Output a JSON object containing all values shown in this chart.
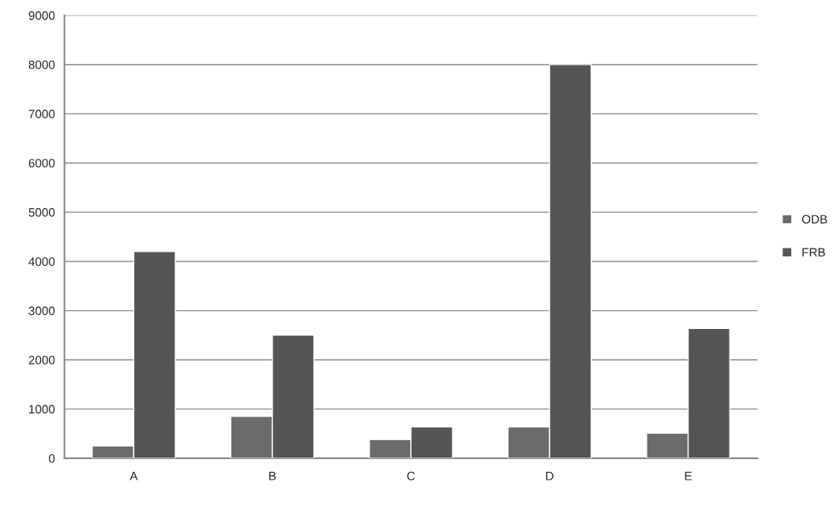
{
  "chart_data": {
    "type": "bar",
    "categories": [
      "A",
      "B",
      "C",
      "D",
      "E"
    ],
    "series": [
      {
        "name": "ODB",
        "color": "#6b6b6b",
        "values": [
          250,
          850,
          380,
          640,
          510
        ]
      },
      {
        "name": "FRB",
        "color": "#555555",
        "values": [
          4200,
          2500,
          640,
          8000,
          2640
        ]
      }
    ],
    "ylim": [
      0,
      9000
    ],
    "yticks": [
      0,
      1000,
      2000,
      3000,
      4000,
      5000,
      6000,
      7000,
      8000,
      9000
    ],
    "grid": "y",
    "legend": "right"
  }
}
